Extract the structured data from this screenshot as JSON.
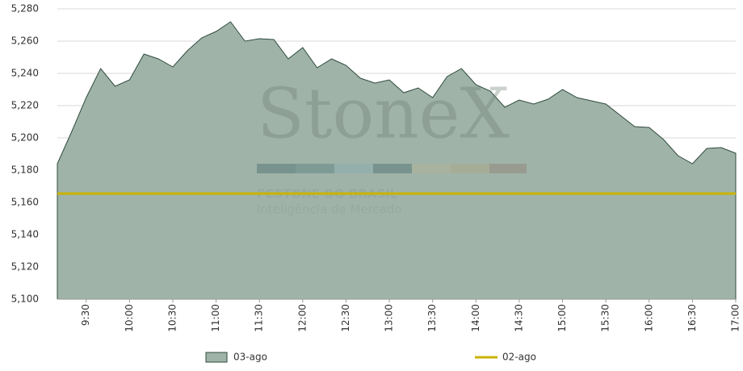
{
  "chart_data": {
    "type": "area",
    "watermark": {
      "brand": "StoneX",
      "company": "FCSTONE DO BRASIL",
      "tagline": "Inteligência de Mercado"
    },
    "categories": [
      null,
      null,
      "9:30",
      null,
      null,
      "10:00",
      null,
      null,
      "10:30",
      null,
      null,
      "11:00",
      null,
      null,
      "11:30",
      null,
      null,
      "12:00",
      null,
      null,
      "12:30",
      null,
      null,
      "13:00",
      null,
      null,
      "13:30",
      null,
      null,
      "14:00",
      null,
      null,
      "14:30",
      null,
      null,
      "15:00",
      null,
      null,
      "15:30",
      null,
      null,
      "16:00",
      null,
      null,
      "16:30",
      null,
      null,
      "17:00"
    ],
    "series": [
      {
        "name": "03-ago",
        "color": "#a0b3a9",
        "stroke": "#2f4b3e",
        "kind": "area",
        "values": [
          5184,
          5204,
          5225,
          5243,
          5232,
          5236,
          5252,
          5249,
          5244,
          5254,
          5262,
          5266,
          5272,
          5260,
          5261.5,
          5261,
          5249,
          5256,
          5243.5,
          5249,
          5245,
          5237,
          5234,
          5236,
          5228,
          5231,
          5225,
          5238,
          5243,
          5233,
          5229,
          5219,
          5223.5,
          5221,
          5224,
          5230,
          5225,
          5223,
          5221,
          5214,
          5207,
          5206.5,
          5199,
          5189,
          5184,
          5193.5,
          5194,
          5190.5
        ]
      },
      {
        "name": "02-ago",
        "color": "#c9b300",
        "kind": "line",
        "values": [
          5165.5,
          5165.5,
          5165.5,
          5165.5,
          5165.5,
          5165.5,
          5165.5,
          5165.5,
          5165.5,
          5165.5,
          5165.5,
          5165.5,
          5165.5,
          5165.5,
          5165.5,
          5165.5,
          5165.5,
          5165.5,
          5165.5,
          5165.5,
          5165.5,
          5165.5,
          5165.5,
          5165.5,
          5165.5,
          5165.5,
          5165.5,
          5165.5,
          5165.5,
          5165.5,
          5165.5,
          5165.5,
          5165.5,
          5165.5,
          5165.5,
          5165.5,
          5165.5,
          5165.5,
          5165.5,
          5165.5,
          5165.5,
          5165.5,
          5165.5,
          5165.5,
          5165.5,
          5165.5,
          5165.5,
          5165.5
        ]
      }
    ],
    "ylim": [
      5100,
      5280
    ],
    "yticks": [
      {
        "value": 5100,
        "label": "5,100"
      },
      {
        "value": 5120,
        "label": "5,120"
      },
      {
        "value": 5140,
        "label": "5,140"
      },
      {
        "value": 5160,
        "label": "5,160"
      },
      {
        "value": 5180,
        "label": "5,180"
      },
      {
        "value": 5200,
        "label": "5,200"
      },
      {
        "value": 5220,
        "label": "5,220"
      },
      {
        "value": 5240,
        "label": "5,240"
      },
      {
        "value": 5260,
        "label": "5,260"
      },
      {
        "value": 5280,
        "label": "5,280"
      }
    ],
    "grid": true,
    "legend": "bottom"
  }
}
